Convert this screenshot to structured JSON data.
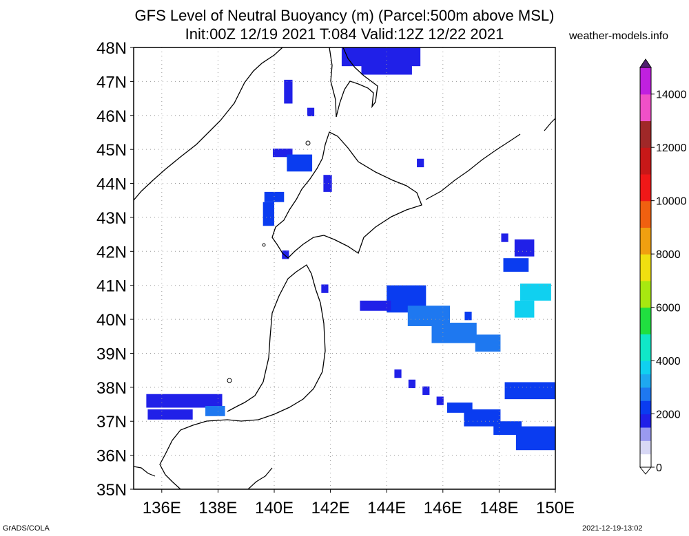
{
  "title_line1": "GFS Level of Neutral Buoyancy (m) (Parcel:500m above MSL)",
  "title_line2": "Init:00Z 12/19 2021 T:084 Valid:12Z 12/22 2021",
  "site": "weather-models.info",
  "footer_left": "GrADS/COLA",
  "footer_right": "2021-12-19-13:02",
  "map": {
    "lon_range": [
      135,
      150
    ],
    "lat_range": [
      35,
      48
    ],
    "lon_ticks": [
      {
        "v": 136,
        "label": "136E"
      },
      {
        "v": 138,
        "label": "138E"
      },
      {
        "v": 140,
        "label": "140E"
      },
      {
        "v": 142,
        "label": "142E"
      },
      {
        "v": 144,
        "label": "144E"
      },
      {
        "v": 146,
        "label": "146E"
      },
      {
        "v": 148,
        "label": "148E"
      },
      {
        "v": 150,
        "label": "150E"
      }
    ],
    "lat_ticks": [
      {
        "v": 35,
        "label": "35N"
      },
      {
        "v": 36,
        "label": "36N"
      },
      {
        "v": 37,
        "label": "37N"
      },
      {
        "v": 38,
        "label": "38N"
      },
      {
        "v": 39,
        "label": "39N"
      },
      {
        "v": 40,
        "label": "40N"
      },
      {
        "v": 41,
        "label": "41N"
      },
      {
        "v": 42,
        "label": "42N"
      },
      {
        "v": 43,
        "label": "43N"
      },
      {
        "v": 44,
        "label": "44N"
      },
      {
        "v": 45,
        "label": "45N"
      },
      {
        "v": 46,
        "label": "46N"
      },
      {
        "v": 47,
        "label": "47N"
      },
      {
        "v": 48,
        "label": "48N"
      }
    ],
    "grid": true
  },
  "colorbar": {
    "range": [
      0,
      15000
    ],
    "labels": [
      {
        "v": 0,
        "label": "0"
      },
      {
        "v": 2000,
        "label": "2000"
      },
      {
        "v": 4000,
        "label": "4000"
      },
      {
        "v": 6000,
        "label": "6000"
      },
      {
        "v": 8000,
        "label": "8000"
      },
      {
        "v": 10000,
        "label": "10000"
      },
      {
        "v": 12000,
        "label": "12000"
      },
      {
        "v": 14000,
        "label": "14000"
      }
    ],
    "stops": [
      {
        "v": 0,
        "color": "#ffffff"
      },
      {
        "v": 500,
        "color": "#d8d8f5"
      },
      {
        "v": 1000,
        "color": "#9a9aef"
      },
      {
        "v": 1500,
        "color": "#2020e8"
      },
      {
        "v": 2000,
        "color": "#0a3cf0"
      },
      {
        "v": 2500,
        "color": "#1e78f0"
      },
      {
        "v": 3000,
        "color": "#1ea8f0"
      },
      {
        "v": 3500,
        "color": "#10d0f0"
      },
      {
        "v": 4000,
        "color": "#10e8c8"
      },
      {
        "v": 5000,
        "color": "#20e040"
      },
      {
        "v": 6000,
        "color": "#a8e810"
      },
      {
        "v": 7000,
        "color": "#f0e010"
      },
      {
        "v": 8000,
        "color": "#f0a010"
      },
      {
        "v": 9000,
        "color": "#f06010"
      },
      {
        "v": 10000,
        "color": "#f01818"
      },
      {
        "v": 11000,
        "color": "#c81818"
      },
      {
        "v": 12000,
        "color": "#a02828"
      },
      {
        "v": 13000,
        "color": "#f050c8"
      },
      {
        "v": 14000,
        "color": "#c020e0"
      },
      {
        "v": 15000,
        "color": "#502070"
      }
    ]
  },
  "field": [
    {
      "lon": 143.8,
      "lat": 47.8,
      "w": 2.8,
      "h": 0.7,
      "v": 1900
    },
    {
      "lon": 144.0,
      "lat": 47.4,
      "w": 1.8,
      "h": 0.4,
      "v": 1800
    },
    {
      "lon": 140.5,
      "lat": 46.7,
      "w": 0.3,
      "h": 0.7,
      "v": 1700
    },
    {
      "lon": 141.3,
      "lat": 46.1,
      "w": 0.25,
      "h": 0.25,
      "v": 1700
    },
    {
      "lon": 140.3,
      "lat": 44.9,
      "w": 0.7,
      "h": 0.25,
      "v": 1800
    },
    {
      "lon": 140.9,
      "lat": 44.6,
      "w": 0.9,
      "h": 0.5,
      "v": 2000
    },
    {
      "lon": 141.9,
      "lat": 44.0,
      "w": 0.3,
      "h": 0.5,
      "v": 1900
    },
    {
      "lon": 145.2,
      "lat": 44.6,
      "w": 0.25,
      "h": 0.25,
      "v": 1700
    },
    {
      "lon": 140.0,
      "lat": 43.6,
      "w": 0.7,
      "h": 0.3,
      "v": 2300
    },
    {
      "lon": 139.8,
      "lat": 43.1,
      "w": 0.4,
      "h": 0.7,
      "v": 2000
    },
    {
      "lon": 140.4,
      "lat": 41.9,
      "w": 0.25,
      "h": 0.25,
      "v": 1700
    },
    {
      "lon": 141.8,
      "lat": 40.9,
      "w": 0.25,
      "h": 0.25,
      "v": 1700
    },
    {
      "lon": 144.7,
      "lat": 40.6,
      "w": 1.4,
      "h": 0.8,
      "v": 2400
    },
    {
      "lon": 145.5,
      "lat": 40.1,
      "w": 1.5,
      "h": 0.6,
      "v": 2600
    },
    {
      "lon": 146.4,
      "lat": 39.6,
      "w": 1.6,
      "h": 0.6,
      "v": 2700
    },
    {
      "lon": 147.6,
      "lat": 39.3,
      "w": 0.9,
      "h": 0.5,
      "v": 2900
    },
    {
      "lon": 143.6,
      "lat": 40.4,
      "w": 1.1,
      "h": 0.3,
      "v": 1800
    },
    {
      "lon": 146.9,
      "lat": 40.1,
      "w": 0.25,
      "h": 0.25,
      "v": 2000
    },
    {
      "lon": 148.9,
      "lat": 42.1,
      "w": 0.7,
      "h": 0.5,
      "v": 1700
    },
    {
      "lon": 148.6,
      "lat": 41.6,
      "w": 0.9,
      "h": 0.4,
      "v": 2400
    },
    {
      "lon": 149.3,
      "lat": 40.8,
      "w": 1.1,
      "h": 0.5,
      "v": 3600
    },
    {
      "lon": 148.9,
      "lat": 40.3,
      "w": 0.7,
      "h": 0.5,
      "v": 3800
    },
    {
      "lon": 148.2,
      "lat": 42.4,
      "w": 0.25,
      "h": 0.25,
      "v": 1700
    },
    {
      "lon": 144.4,
      "lat": 38.4,
      "w": 0.25,
      "h": 0.25,
      "v": 1700
    },
    {
      "lon": 144.9,
      "lat": 38.1,
      "w": 0.25,
      "h": 0.25,
      "v": 1700
    },
    {
      "lon": 145.4,
      "lat": 37.9,
      "w": 0.25,
      "h": 0.25,
      "v": 1700
    },
    {
      "lon": 145.9,
      "lat": 37.6,
      "w": 0.25,
      "h": 0.25,
      "v": 1700
    },
    {
      "lon": 146.6,
      "lat": 37.4,
      "w": 0.9,
      "h": 0.3,
      "v": 2400
    },
    {
      "lon": 147.4,
      "lat": 37.1,
      "w": 1.3,
      "h": 0.5,
      "v": 2200
    },
    {
      "lon": 148.3,
      "lat": 36.8,
      "w": 1.0,
      "h": 0.4,
      "v": 2100
    },
    {
      "lon": 149.2,
      "lat": 37.9,
      "w": 2.0,
      "h": 0.5,
      "v": 2300
    },
    {
      "lon": 149.3,
      "lat": 36.5,
      "w": 1.4,
      "h": 0.7,
      "v": 2200
    },
    {
      "lon": 136.8,
      "lat": 37.6,
      "w": 2.7,
      "h": 0.4,
      "v": 1800
    },
    {
      "lon": 136.3,
      "lat": 37.2,
      "w": 1.6,
      "h": 0.3,
      "v": 1700
    },
    {
      "lon": 137.9,
      "lat": 37.3,
      "w": 0.7,
      "h": 0.3,
      "v": 2500
    }
  ]
}
